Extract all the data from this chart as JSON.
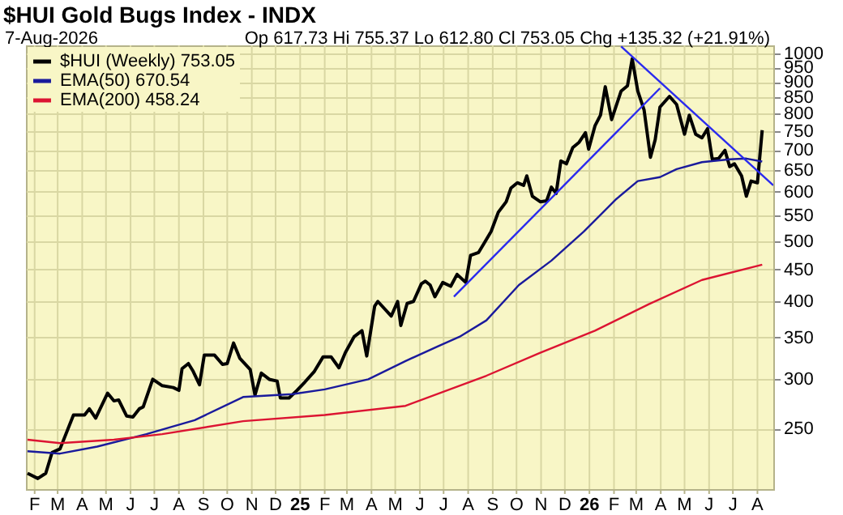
{
  "chart_data": {
    "type": "line",
    "title": "$HUI Gold Bugs Index - INDX",
    "annotations": [
      "7-Aug-2026",
      "Op 617.73  Hi 755.37  Lo 612.80  Cl 753.05  Chg +135.32 (+21.91%)"
    ],
    "series": [
      {
        "name": "$HUI (Weekly) 753.05",
        "color": "#000000",
        "x": [
          "2024-01-23",
          "2024-02-05",
          "2024-02-15",
          "2024-02-23",
          "2024-03-04",
          "2024-03-21",
          "2024-04-04",
          "2024-04-10",
          "2024-04-18",
          "2024-05-03",
          "2024-05-11",
          "2024-05-17",
          "2024-05-27",
          "2024-06-04",
          "2024-06-12",
          "2024-06-17",
          "2024-06-29",
          "2024-07-11",
          "2024-07-25",
          "2024-08-01",
          "2024-08-05",
          "2024-08-13",
          "2024-08-19",
          "2024-08-27",
          "2024-09-02",
          "2024-09-15",
          "2024-09-25",
          "2024-10-01",
          "2024-10-09",
          "2024-10-17",
          "2024-10-30",
          "2024-11-05",
          "2024-11-13",
          "2024-11-23",
          "2024-12-03",
          "2024-12-07",
          "2024-12-18",
          "2024-12-28",
          "2025-01-07",
          "2025-01-19",
          "2025-01-30",
          "2025-02-09",
          "2025-02-19",
          "2025-02-27",
          "2025-03-10",
          "2025-03-20",
          "2025-03-26",
          "2025-04-05",
          "2025-04-09",
          "2025-04-26",
          "2025-05-04",
          "2025-05-08",
          "2025-05-16",
          "2025-05-24",
          "2025-06-03",
          "2025-06-08",
          "2025-06-14",
          "2025-06-20",
          "2025-06-30",
          "2025-07-10",
          "2025-07-18",
          "2025-07-29",
          "2025-08-04",
          "2025-08-14",
          "2025-08-22",
          "2025-08-30",
          "2025-09-08",
          "2025-09-18",
          "2025-09-24",
          "2025-10-02",
          "2025-10-10",
          "2025-10-14",
          "2025-10-21",
          "2025-10-31",
          "2025-11-08",
          "2025-11-14",
          "2025-11-20",
          "2025-11-26",
          "2025-12-03",
          "2025-12-11",
          "2025-12-19",
          "2025-12-27",
          "2025-12-31",
          "2026-01-08",
          "2026-01-15",
          "2026-01-21",
          "2026-01-29",
          "2026-02-10",
          "2026-02-18",
          "2026-02-24",
          "2026-03-03",
          "2026-03-11",
          "2026-03-19",
          "2026-03-25",
          "2026-03-31",
          "2026-04-12",
          "2026-04-21",
          "2026-05-01",
          "2026-05-07",
          "2026-05-15",
          "2026-05-23",
          "2026-05-30",
          "2026-06-05",
          "2026-06-13",
          "2026-06-21",
          "2026-06-27",
          "2026-07-03",
          "2026-07-12",
          "2026-07-18",
          "2026-07-24",
          "2026-08-01",
          "2026-08-07"
        ],
        "values": [
          212,
          208,
          212,
          229,
          232,
          263,
          263,
          269,
          260,
          285,
          277,
          278,
          262,
          261,
          269,
          271,
          300,
          293,
          291,
          288,
          312,
          318,
          309,
          294,
          328,
          328,
          317,
          318,
          343,
          324,
          311,
          283,
          307,
          300,
          298,
          280,
          280,
          288,
          297,
          309,
          326,
          326,
          313,
          331,
          351,
          359,
          327,
          393,
          400,
          379,
          400,
          366,
          397,
          400,
          427,
          431,
          425,
          407,
          429,
          423,
          442,
          429,
          474,
          479,
          498,
          518,
          556,
          578,
          608,
          620,
          614,
          636,
          590,
          578,
          580,
          610,
          596,
          672,
          665,
          706,
          720,
          746,
          702,
          765,
          796,
          884,
          783,
          870,
          887,
          980,
          870,
          811,
          681,
          727,
          820,
          853,
          828,
          742,
          796,
          742,
          732,
          757,
          676,
          678,
          699,
          658,
          665,
          636,
          590,
          624,
          620,
          753.05
        ]
      },
      {
        "name": "EMA(50) 670.54",
        "color": "#1a1a9c",
        "x": [
          "2024-01-23",
          "2024-03-04",
          "2024-04-20",
          "2024-06-21",
          "2024-08-21",
          "2024-10-21",
          "2024-12-22",
          "2025-02-01",
          "2025-03-28",
          "2025-05-14",
          "2025-06-24",
          "2025-07-21",
          "2025-08-24",
          "2025-10-04",
          "2025-11-14",
          "2025-12-25",
          "2026-02-04",
          "2026-03-03",
          "2026-03-31",
          "2026-04-21",
          "2026-05-23",
          "2026-06-27",
          "2026-07-18",
          "2026-08-07"
        ],
        "values": [
          230,
          228,
          234,
          245,
          258,
          281,
          284,
          289,
          300,
          321,
          339,
          351,
          373,
          425,
          465,
          518,
          584,
          624,
          633,
          652,
          669,
          676,
          678,
          670.54
        ]
      },
      {
        "name": "EMA(200) 458.24",
        "color": "#dc1432",
        "x": [
          "2024-01-23",
          "2024-03-04",
          "2024-05-11",
          "2024-07-11",
          "2024-10-21",
          "2025-02-01",
          "2025-05-14",
          "2025-08-24",
          "2025-10-31",
          "2026-01-08",
          "2026-03-17",
          "2026-05-23",
          "2026-08-07"
        ],
        "values": [
          240,
          237,
          240,
          245,
          257,
          263,
          272,
          304,
          331,
          359,
          396,
          433,
          458.24
        ]
      },
      {
        "color": "#2a2aee",
        "x": [
          "2025-07-14",
          "2026-03-31"
        ],
        "values": [
          407,
          879
        ]
      },
      {
        "color": "#2a2aee",
        "x": [
          "2026-02-10",
          "2026-08-21"
        ],
        "values": [
          1026,
          614
        ]
      }
    ],
    "xlim": [
      "2024-01-21",
      "2026-08-21"
    ],
    "xticks": [
      {
        "value": "2024-02-01",
        "label": "F"
      },
      {
        "value": "2024-03-01",
        "label": "M"
      },
      {
        "value": "2024-04-01",
        "label": "A"
      },
      {
        "value": "2024-05-01",
        "label": "M"
      },
      {
        "value": "2024-06-01",
        "label": "J"
      },
      {
        "value": "2024-07-01",
        "label": "J"
      },
      {
        "value": "2024-08-01",
        "label": "A"
      },
      {
        "value": "2024-09-01",
        "label": "S"
      },
      {
        "value": "2024-10-01",
        "label": "O"
      },
      {
        "value": "2024-11-01",
        "label": "N"
      },
      {
        "value": "2024-12-01",
        "label": "D"
      },
      {
        "value": "2025-01-01",
        "label": "25"
      },
      {
        "value": "2025-02-01",
        "label": "F"
      },
      {
        "value": "2025-03-01",
        "label": "M"
      },
      {
        "value": "2025-04-01",
        "label": "A"
      },
      {
        "value": "2025-05-01",
        "label": "M"
      },
      {
        "value": "2025-06-01",
        "label": "J"
      },
      {
        "value": "2025-07-01",
        "label": "J"
      },
      {
        "value": "2025-08-01",
        "label": "A"
      },
      {
        "value": "2025-09-01",
        "label": "S"
      },
      {
        "value": "2025-10-01",
        "label": "O"
      },
      {
        "value": "2025-11-01",
        "label": "N"
      },
      {
        "value": "2025-12-01",
        "label": "D"
      },
      {
        "value": "2026-01-01",
        "label": "26"
      },
      {
        "value": "2026-02-01",
        "label": "F"
      },
      {
        "value": "2026-03-01",
        "label": "M"
      },
      {
        "value": "2026-04-01",
        "label": "A"
      },
      {
        "value": "2026-05-01",
        "label": "M"
      },
      {
        "value": "2026-06-01",
        "label": "J"
      },
      {
        "value": "2026-07-01",
        "label": "J"
      },
      {
        "value": "2026-08-01",
        "label": "A"
      }
    ],
    "ylim": [
      200,
      1030
    ],
    "yticks": [
      250,
      300,
      350,
      400,
      450,
      500,
      550,
      600,
      650,
      700,
      750,
      800,
      850,
      900,
      950,
      1000
    ],
    "log": true,
    "grid": true,
    "legend": "top left",
    "marker": "none",
    "line_style": "solid"
  }
}
